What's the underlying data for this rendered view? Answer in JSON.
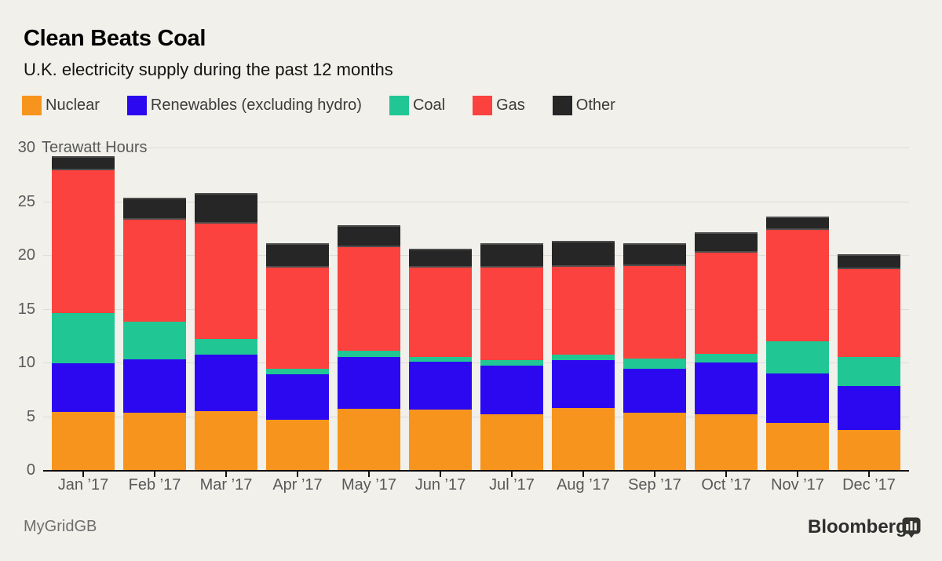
{
  "header": {
    "title": "Clean Beats Coal",
    "subtitle": "U.K. electricity supply during the past 12 months"
  },
  "footer": {
    "source": "MyGridGB",
    "brand": "Bloomberg"
  },
  "colors": {
    "background": "#f1f0ea",
    "gridline": "#dcdcd8",
    "axis": "#0a0a0a",
    "tick_label": "#59595b",
    "legend_text": "#3b3b3b",
    "other_segment_edge": "#4d4d4d"
  },
  "icons": {
    "brand_icon": "bloomberg-chart-bubble-icon"
  },
  "chart_data": {
    "type": "bar",
    "stacked": true,
    "title": "Clean Beats Coal",
    "subtitle": "U.K. electricity supply during the past 12 months",
    "unit_label": "Terawatt Hours",
    "xlabel": "",
    "ylabel": "Terawatt Hours",
    "ylim": [
      0,
      30
    ],
    "yticks": [
      0,
      5,
      10,
      15,
      20,
      25,
      30
    ],
    "grid": "horizontal",
    "legend_position": "top",
    "categories": [
      "Jan ’17",
      "Feb ’17",
      "Mar ’17",
      "Apr ’17",
      "May ’17",
      "Jun ’17",
      "Jul ’17",
      "Aug ’17",
      "Sep ’17",
      "Oct ’17",
      "Nov ’17",
      "Dec ’17"
    ],
    "series": [
      {
        "name": "Nuclear",
        "color": "#f7941e",
        "values": [
          5.4,
          5.3,
          5.5,
          4.7,
          5.7,
          5.6,
          5.2,
          5.8,
          5.3,
          5.2,
          4.4,
          3.7
        ]
      },
      {
        "name": "Renewables (excluding hydro)",
        "color": "#2b08f0",
        "values": [
          4.5,
          5.0,
          5.2,
          4.2,
          4.8,
          4.5,
          4.5,
          4.4,
          4.1,
          4.8,
          4.6,
          4.1
        ]
      },
      {
        "name": "Coal",
        "color": "#20c794",
        "values": [
          4.7,
          3.5,
          1.5,
          0.5,
          0.6,
          0.4,
          0.5,
          0.5,
          1.0,
          0.8,
          3.0,
          2.7
        ]
      },
      {
        "name": "Gas",
        "color": "#fb423e",
        "values": [
          13.3,
          9.5,
          10.7,
          9.4,
          9.6,
          8.3,
          8.6,
          8.2,
          8.6,
          9.4,
          10.3,
          8.2
        ]
      },
      {
        "name": "Other",
        "color": "#262626",
        "values": [
          1.3,
          2.0,
          2.9,
          2.3,
          2.1,
          1.8,
          2.3,
          2.4,
          2.1,
          1.9,
          1.3,
          1.4
        ]
      }
    ]
  }
}
